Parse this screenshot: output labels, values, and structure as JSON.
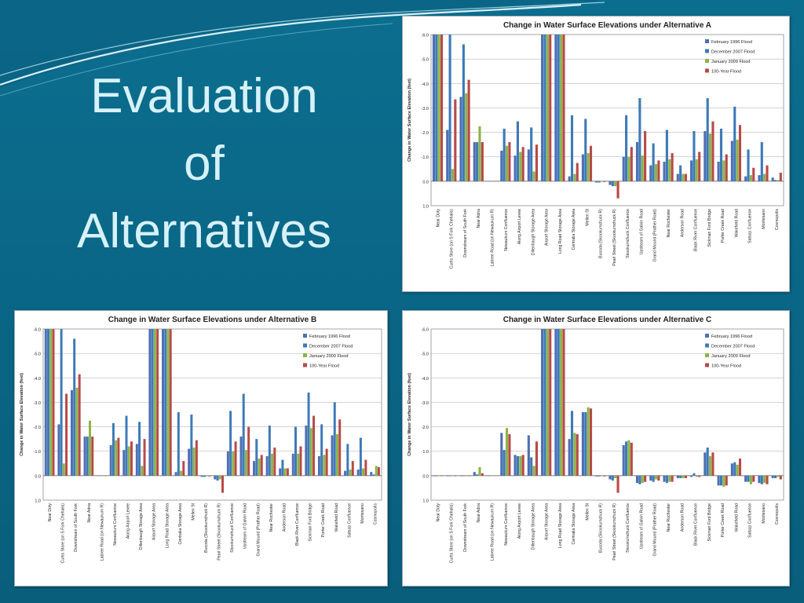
{
  "slide": {
    "title_lines": [
      "Evaluation",
      "of",
      "Alternatives"
    ],
    "colors": {
      "background": "#0a6585",
      "title": "#d6f1f8",
      "swoosh": "#d9f1f8"
    }
  },
  "chart_data": [
    {
      "type": "bar",
      "title": "Change in Water Surface Elevations under Alternative A",
      "ylabel": "Change in Water Surface Elevation (feet)",
      "xlabel": "",
      "ylim": [
        -6.0,
        1.0
      ],
      "y_inverted": true,
      "ytick_labels": [
        "-6.0",
        "-5.0",
        "-4.0",
        "-3.0",
        "-2.0",
        "-1.0",
        "0.0",
        "1.0"
      ],
      "grid": true,
      "legend_position": "top-right",
      "categories": [
        "Near Doty",
        "Curtis Store (on S Fork Chehalis)",
        "Downstream of South Fork",
        "Near Adna",
        "Labree Road (on Newaukum R)",
        "Newaukum Confluence",
        "Along Airport Levee",
        "Dillenbaugh Storage Area",
        "Airport Storage Area",
        "Long Road Storage Area",
        "Centralia Storage Area",
        "Mellen St",
        "Bucoda (Skookumchuck R)",
        "Pearl Street (Skookumchuck R)",
        "Skookumchuck Confluence",
        "Upstream of Galvin Road",
        "Grand Mound (Prather Road)",
        "Near Rochester",
        "Anderson Road",
        "Black River Confluence",
        "Sickman Ford Bridge",
        "Porter Creek Road",
        "Wakefield Road",
        "Satsop Confluence",
        "Montesano",
        "Cosmopolis"
      ],
      "series": [
        {
          "name": "February 1996 Flood",
          "color": "#4f6fb3",
          "values": [
            -6.0,
            -2.1,
            -3.45,
            -1.6,
            0.0,
            -1.25,
            -1.05,
            -1.3,
            -6.0,
            -6.0,
            -0.2,
            -1.1,
            0.05,
            0.15,
            -1.0,
            -1.6,
            -0.65,
            -0.8,
            -0.3,
            -0.85,
            -2.05,
            -0.8,
            -1.65,
            -0.2,
            -0.25,
            -0.15
          ]
        },
        {
          "name": "December 2007 Flood",
          "color": "#3d7ab8",
          "values": [
            -6.0,
            -6.0,
            -5.6,
            -1.6,
            0.0,
            -2.15,
            -2.45,
            -2.2,
            -6.0,
            -6.0,
            -2.7,
            -2.55,
            0.05,
            0.2,
            -2.7,
            -3.4,
            -1.55,
            -2.1,
            -0.65,
            -2.05,
            -3.4,
            -2.15,
            -3.05,
            -1.3,
            -1.6,
            -0.05
          ]
        },
        {
          "name": "January 2009 Flood",
          "color": "#8cb44a",
          "values": [
            -6.0,
            -0.5,
            -3.6,
            -2.25,
            0.0,
            -1.45,
            -1.2,
            -0.4,
            -6.0,
            -6.0,
            -0.3,
            -1.15,
            0.02,
            0.2,
            -1.0,
            -1.05,
            -0.7,
            -0.9,
            -0.3,
            -0.9,
            -1.95,
            -0.85,
            -1.7,
            -0.25,
            -0.3,
            -0.05
          ]
        },
        {
          "name": "100-Year Flood",
          "color": "#b84a47",
          "values": [
            -6.0,
            -3.35,
            -4.15,
            -1.6,
            0.0,
            -1.6,
            -1.4,
            -1.5,
            -6.0,
            -6.0,
            -0.75,
            -1.45,
            0.03,
            0.7,
            -1.4,
            -2.05,
            -0.85,
            -1.15,
            -0.3,
            -1.2,
            -2.45,
            -1.1,
            -2.3,
            -0.55,
            -0.65,
            -0.35
          ]
        }
      ]
    },
    {
      "type": "bar",
      "title": "Change in Water Surface Elevations under Alternative B",
      "ylabel": "Change in Water Surface Elevation (feet)",
      "xlabel": "",
      "ylim": [
        -6.0,
        1.0
      ],
      "y_inverted": true,
      "ytick_labels": [
        "-6.0",
        "-5.0",
        "-4.0",
        "-3.0",
        "-2.0",
        "-1.0",
        "0.0",
        "1.0"
      ],
      "grid": true,
      "legend_position": "top-right",
      "categories": [
        "Near Doty",
        "Curtis Store (on S Fork Chehalis)",
        "Downstream of South Fork",
        "Near Adna",
        "Labree Road (on Newaukum R)",
        "Newaukum Confluence",
        "Along Airport Levee",
        "Dillenbaugh Storage Area",
        "Airport Storage Area",
        "Long Road Storage Area",
        "Centralia Storage Area",
        "Mellen St",
        "Bucoda (Skookumchuck R)",
        "Pearl Street (Skookumchuck R)",
        "Skookumchuck Confluence",
        "Upstream of Galvin Road",
        "Grand Mound (Prather Road)",
        "Near Rochester",
        "Anderson Road",
        "Black River Confluence",
        "Sickman Ford Bridge",
        "Porter Creek Road",
        "Wakefield Road",
        "Satsop Confluence",
        "Montesano",
        "Cosmopolis"
      ],
      "series": [
        {
          "name": "February 1996 Flood",
          "color": "#4f6fb3",
          "values": [
            -6.0,
            -2.1,
            -3.5,
            -1.6,
            0.0,
            -1.25,
            -1.05,
            -1.3,
            -6.0,
            -6.0,
            -0.15,
            -1.1,
            0.05,
            0.15,
            -1.0,
            -1.6,
            -0.6,
            -0.8,
            -0.3,
            -0.9,
            -2.05,
            -0.8,
            -1.65,
            -0.2,
            -0.25,
            -0.15
          ]
        },
        {
          "name": "December 2007 Flood",
          "color": "#3d7ab8",
          "values": [
            -6.0,
            -6.0,
            -5.6,
            -1.6,
            0.0,
            -2.15,
            -2.45,
            -2.2,
            -6.0,
            -6.0,
            -2.6,
            -2.5,
            0.05,
            0.2,
            -2.65,
            -3.35,
            -1.5,
            -2.05,
            -0.65,
            -2.0,
            -3.4,
            -2.1,
            -3.0,
            -1.3,
            -1.55,
            -0.05
          ]
        },
        {
          "name": "January 2009 Flood",
          "color": "#8cb44a",
          "values": [
            -6.0,
            -0.5,
            -3.6,
            -2.25,
            0.0,
            -1.45,
            -1.2,
            -0.4,
            -6.0,
            -6.0,
            -0.2,
            -1.15,
            0.02,
            0.15,
            -1.0,
            -1.05,
            -0.7,
            -0.9,
            -0.3,
            -0.9,
            -1.95,
            -0.85,
            -1.7,
            -0.25,
            -0.3,
            -0.4
          ]
        },
        {
          "name": "100-Year Flood",
          "color": "#b84a47",
          "values": [
            -6.0,
            -3.35,
            -4.15,
            -1.6,
            0.0,
            -1.55,
            -1.4,
            -1.5,
            -6.0,
            -6.0,
            -0.6,
            -1.45,
            0.03,
            0.7,
            -1.4,
            -2.0,
            -0.85,
            -1.15,
            -0.3,
            -1.2,
            -2.45,
            -1.1,
            -2.3,
            -0.6,
            -0.65,
            -0.35
          ]
        }
      ]
    },
    {
      "type": "bar",
      "title": "Change in Water Surface Elevations under Alternative C",
      "ylabel": "Change in Water Surface Elevation (feet)",
      "xlabel": "",
      "ylim": [
        -6.0,
        1.0
      ],
      "y_inverted": true,
      "ytick_labels": [
        "-6.0",
        "-5.0",
        "-4.0",
        "-3.0",
        "-2.0",
        "-1.0",
        "0.0",
        "1.0"
      ],
      "grid": true,
      "legend_position": "top-right",
      "categories": [
        "Near Doty",
        "Curtis Store (on S Fork Chehalis)",
        "Downstream of South Fork",
        "Near Adna",
        "Labree Road (on Newaukum R)",
        "Newaukum Confluence",
        "Along Airport Levee",
        "Dillenbaugh Storage Area",
        "Airport Storage Area",
        "Long Road Storage Area",
        "Centralia Storage Area",
        "Mellen St",
        "Bucoda (Skookumchuck R)",
        "Pearl Street (Skookumchuck R)",
        "Skookumchuck Confluence",
        "Upstream of Galvin Road",
        "Grand Mound (Prather Road)",
        "Near Rochester",
        "Anderson Road",
        "Black River Confluence",
        "Sickman Ford Bridge",
        "Porter Creek Road",
        "Wakefield Road",
        "Satsop Confluence",
        "Montesano",
        "Cosmopolis"
      ],
      "series": [
        {
          "name": "February 1996 Flood",
          "color": "#4f6fb3",
          "values": [
            0.02,
            0.02,
            0.02,
            -0.15,
            0.0,
            -1.75,
            -0.85,
            -1.65,
            -6.0,
            -6.0,
            -1.5,
            -2.6,
            0.03,
            0.15,
            -1.25,
            0.3,
            0.2,
            0.25,
            0.1,
            0.05,
            -0.95,
            0.4,
            -0.5,
            0.25,
            0.3,
            0.1
          ]
        },
        {
          "name": "December 2007 Flood",
          "color": "#3d7ab8",
          "values": [
            0.02,
            0.02,
            0.02,
            -0.05,
            0.0,
            -1.05,
            -0.8,
            -0.75,
            -6.0,
            -6.0,
            -2.65,
            -2.6,
            0.03,
            0.2,
            -1.4,
            0.35,
            0.25,
            0.3,
            0.1,
            -0.1,
            -1.15,
            0.4,
            -0.55,
            0.25,
            0.35,
            0.1
          ]
        },
        {
          "name": "January 2009 Flood",
          "color": "#8cb44a",
          "values": [
            0.02,
            0.02,
            0.02,
            -0.35,
            0.0,
            -1.95,
            -0.8,
            -0.4,
            -6.0,
            -6.0,
            -1.75,
            -2.8,
            0.02,
            0.1,
            -1.45,
            0.3,
            0.15,
            0.25,
            0.1,
            0.05,
            -0.8,
            0.45,
            -0.45,
            0.35,
            0.3,
            0.05
          ]
        },
        {
          "name": "100-Year Flood",
          "color": "#b84a47",
          "values": [
            0.02,
            0.02,
            0.02,
            -0.1,
            0.0,
            -1.7,
            -0.85,
            -1.4,
            -6.0,
            -6.0,
            -1.7,
            -2.75,
            0.03,
            0.7,
            -1.35,
            0.25,
            0.2,
            0.25,
            0.1,
            0.05,
            -0.95,
            0.4,
            -0.7,
            0.25,
            0.35,
            0.15
          ]
        }
      ]
    }
  ]
}
